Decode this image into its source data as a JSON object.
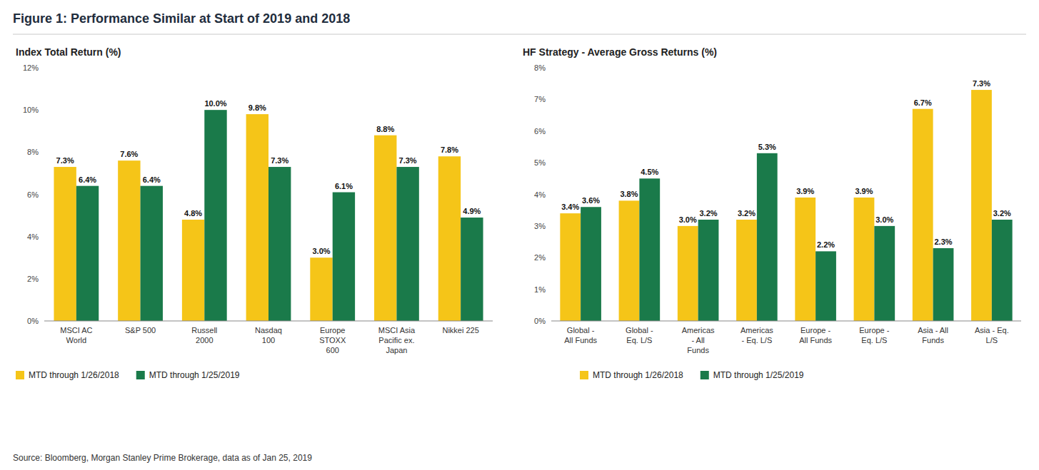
{
  "title": "Figure 1: Performance Similar at Start of 2019 and 2018",
  "source": "Source: Bloomberg, Morgan Stanley Prime Brokerage, data as of Jan 25, 2019",
  "chart_data": [
    {
      "type": "bar",
      "title": "Index Total Return (%)",
      "categories": [
        "MSCI AC\nWorld",
        "S&P 500",
        "Russell\n2000",
        "Nasdaq\n100",
        "Europe\nSTOXX\n600",
        "MSCI Asia\nPacific ex.\nJapan",
        "Nikkei 225"
      ],
      "series": [
        {
          "name": "MTD through 1/26/2018",
          "color": "#F5C518",
          "values": [
            7.3,
            7.6,
            4.8,
            9.8,
            3.0,
            8.8,
            7.8
          ],
          "value_labels": [
            "7.3%",
            "7.6%",
            "4.8%",
            "9.8%",
            "3.0%",
            "8.8%",
            "7.8%"
          ]
        },
        {
          "name": "MTD through 1/25/2019",
          "color": "#1A7A4A",
          "values": [
            6.4,
            6.4,
            10.0,
            7.3,
            6.1,
            7.3,
            4.9
          ],
          "value_labels": [
            "6.4%",
            "6.4%",
            "10.0%",
            "7.3%",
            "6.1%",
            "7.3%",
            "4.9%"
          ]
        }
      ],
      "ylim": [
        0,
        12
      ],
      "yticks": [
        {
          "value": 0,
          "label": "0%"
        },
        {
          "value": 2,
          "label": "2%"
        },
        {
          "value": 4,
          "label": "4%"
        },
        {
          "value": 6,
          "label": "6%"
        },
        {
          "value": 8,
          "label": "8%"
        },
        {
          "value": 10,
          "label": "10%"
        },
        {
          "value": 12,
          "label": "12%"
        }
      ],
      "grid": false,
      "legend": "bottom",
      "data_labels": true
    },
    {
      "type": "bar",
      "title": "HF Strategy - Average Gross Returns (%)",
      "categories": [
        "Global -\nAll Funds",
        "Global -\nEq. L/S",
        "Americas\n- All\nFunds",
        "Americas\n- Eq. L/S",
        "Europe -\nAll Funds",
        "Europe -\nEq. L/S",
        "Asia - All\nFunds",
        "Asia - Eq.\nL/S"
      ],
      "series": [
        {
          "name": "MTD through 1/26/2018",
          "color": "#F5C518",
          "values": [
            3.4,
            3.8,
            3.0,
            3.2,
            3.9,
            3.9,
            6.7,
            7.3
          ],
          "value_labels": [
            "3.4%",
            "3.8%",
            "3.0%",
            "3.2%",
            "3.9%",
            "3.9%",
            "6.7%",
            "7.3%"
          ]
        },
        {
          "name": "MTD through 1/25/2019",
          "color": "#1A7A4A",
          "values": [
            3.6,
            4.5,
            3.2,
            5.3,
            2.2,
            3.0,
            2.3,
            3.2
          ],
          "value_labels": [
            "3.6%",
            "4.5%",
            "3.2%",
            "5.3%",
            "2.2%",
            "3.0%",
            "2.3%",
            "3.2%"
          ]
        }
      ],
      "ylim": [
        0,
        8
      ],
      "yticks": [
        {
          "value": 0,
          "label": "0%"
        },
        {
          "value": 1,
          "label": "1%"
        },
        {
          "value": 2,
          "label": "2%"
        },
        {
          "value": 3,
          "label": "3%"
        },
        {
          "value": 4,
          "label": "4%"
        },
        {
          "value": 5,
          "label": "5%"
        },
        {
          "value": 6,
          "label": "6%"
        },
        {
          "value": 7,
          "label": "7%"
        },
        {
          "value": 8,
          "label": "8%"
        }
      ],
      "grid": false,
      "legend": "bottom",
      "data_labels": true
    }
  ]
}
